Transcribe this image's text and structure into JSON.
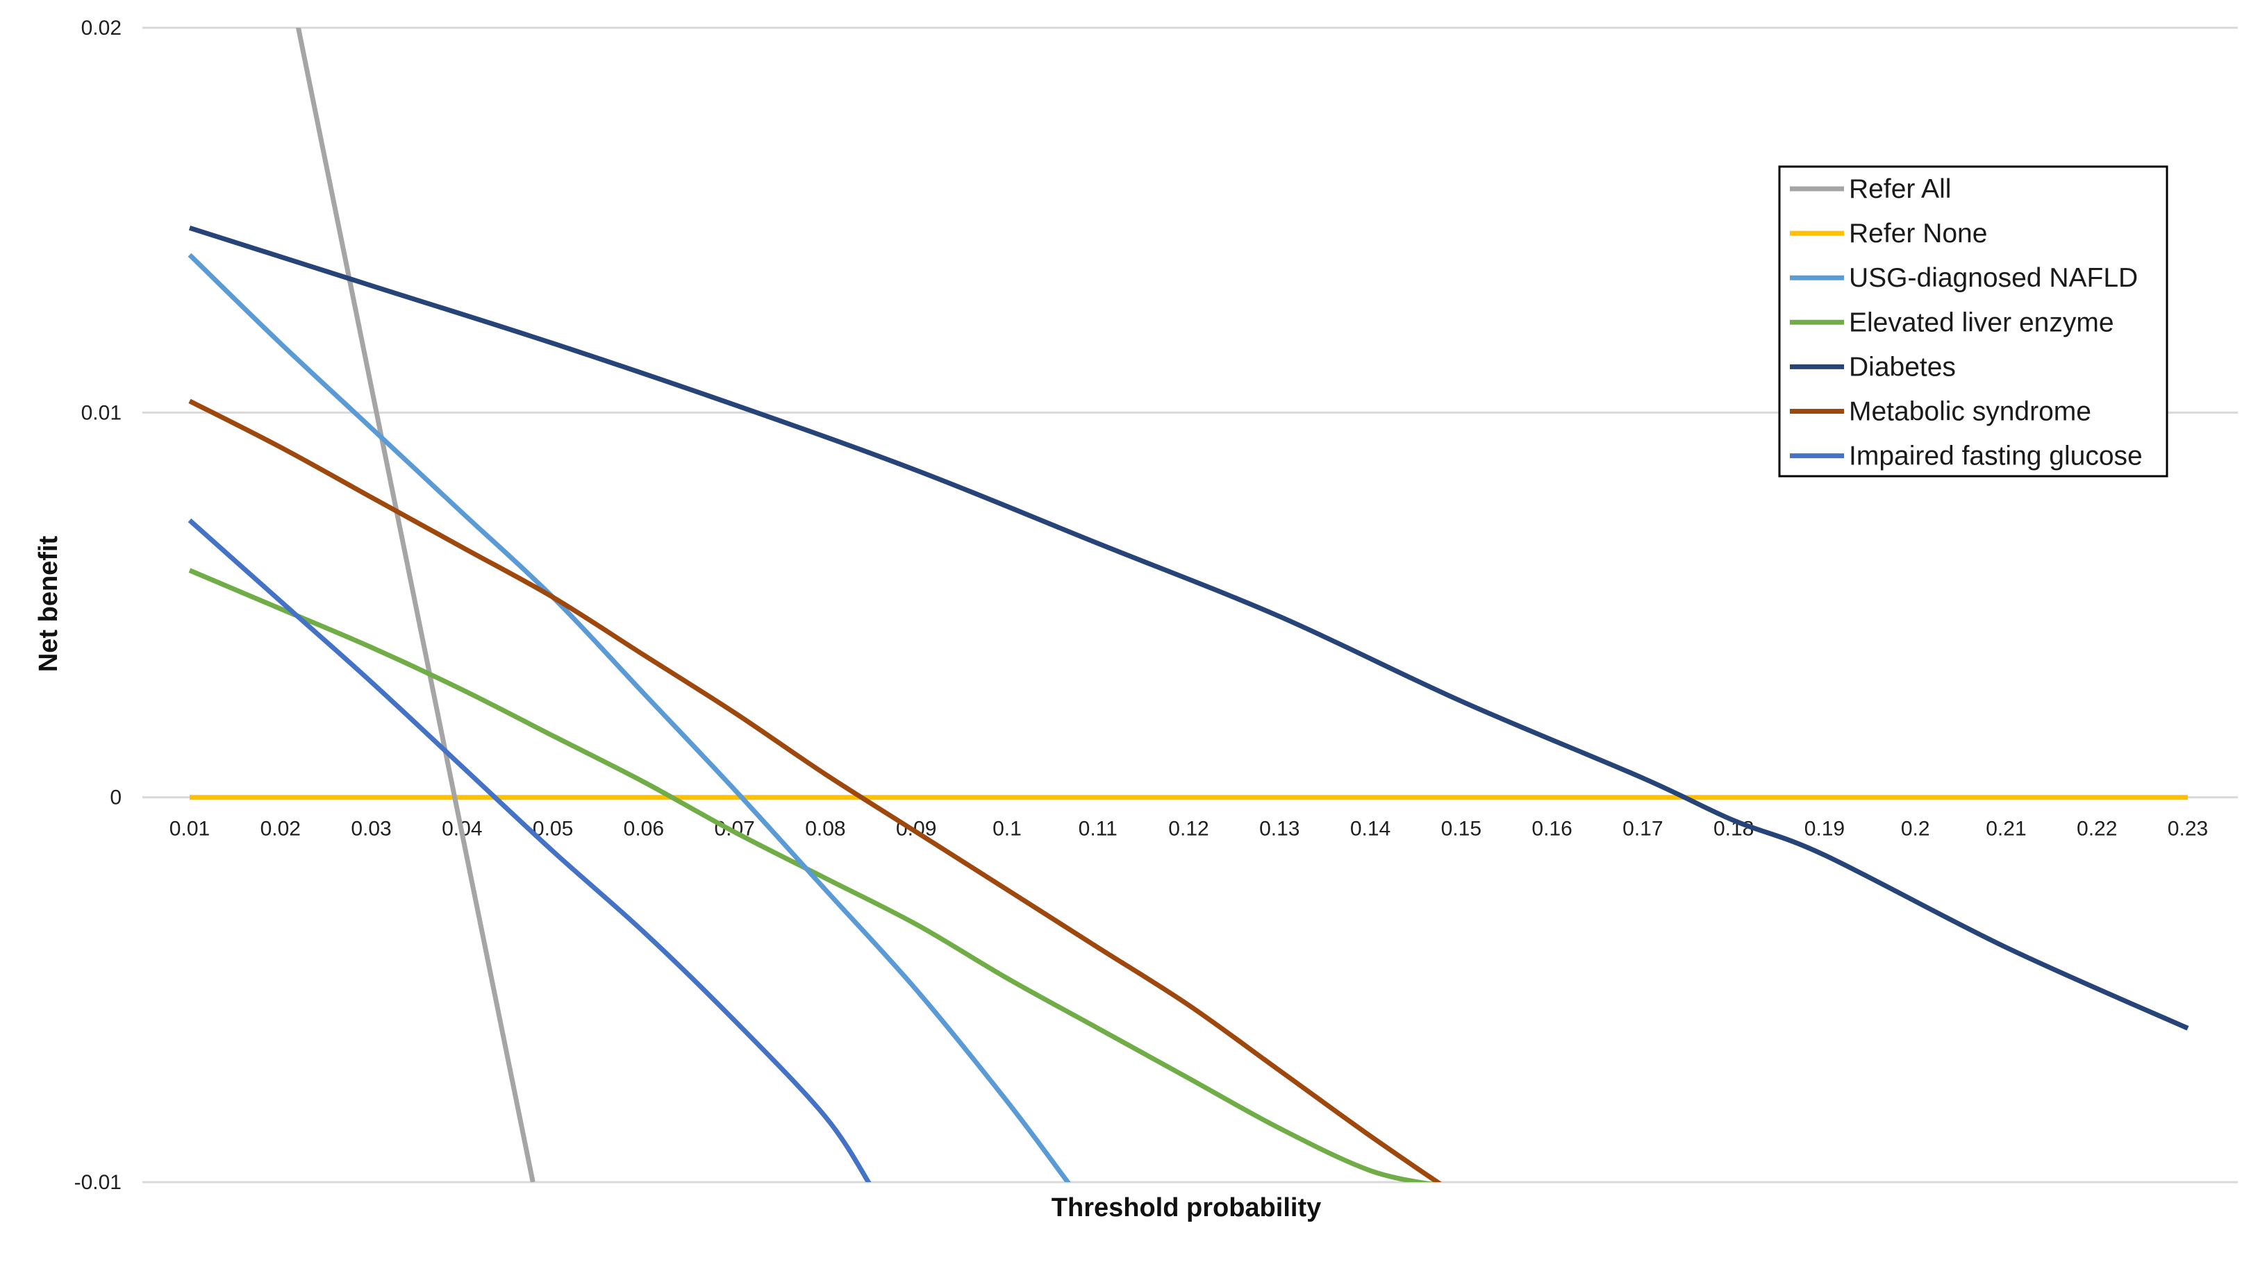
{
  "chart_data": {
    "type": "line",
    "xlabel": "Threshold probability",
    "ylabel": "Net benefit",
    "xlim": [
      0.01,
      0.23
    ],
    "ylim": [
      -0.01,
      0.02
    ],
    "x_ticks": [
      "0.01",
      "0.02",
      "0.03",
      "0.04",
      "0.05",
      "0.06",
      "0.07",
      "0.08",
      "0.09",
      "0.1",
      "0.11",
      "0.12",
      "0.13",
      "0.14",
      "0.15",
      "0.16",
      "0.17",
      "0.18",
      "0.19",
      "0.2",
      "0.21",
      "0.22",
      "0.23"
    ],
    "y_ticks": [
      {
        "value": 0.02,
        "label": "0.02"
      },
      {
        "value": 0.01,
        "label": "0.01"
      },
      {
        "value": 0,
        "label": "0"
      },
      {
        "value": -0.01,
        "label": "-0.01"
      }
    ],
    "grid": "horizontal",
    "legend_position": "top-right",
    "series": [
      {
        "name": "Refer All",
        "color": "#a5a5a5",
        "x": [
          0.01,
          0.0478
        ],
        "y": [
          0.0339,
          -0.01
        ]
      },
      {
        "name": "Refer None",
        "color": "#ffc000",
        "x": [
          0.01,
          0.23
        ],
        "y": [
          0,
          0
        ]
      },
      {
        "name": "USG-diagnosed NAFLD",
        "color": "#5b9bd5",
        "x": [
          0.01,
          0.02,
          0.03,
          0.04,
          0.05,
          0.06,
          0.07,
          0.08,
          0.09,
          0.1,
          0.107
        ],
        "y": [
          0.0141,
          0.0118,
          0.0096,
          0.0074,
          0.0052,
          0.0027,
          0.0002,
          -0.0024,
          -0.005,
          -0.0079,
          -0.0101
        ]
      },
      {
        "name": "Elevated liver enzyme",
        "color": "#70ad47",
        "x": [
          0.01,
          0.02,
          0.03,
          0.04,
          0.05,
          0.06,
          0.07,
          0.08,
          0.09,
          0.1,
          0.11,
          0.12,
          0.13,
          0.14,
          0.1478
        ],
        "y": [
          0.0059,
          0.0049,
          0.0039,
          0.0028,
          0.0016,
          0.0004,
          -0.0009,
          -0.0021,
          -0.0033,
          -0.0047,
          -0.006,
          -0.0073,
          -0.0086,
          -0.0097,
          -0.0101
        ]
      },
      {
        "name": "Diabetes",
        "color": "#264478",
        "x": [
          0.01,
          0.03,
          0.05,
          0.07,
          0.09,
          0.11,
          0.13,
          0.15,
          0.17,
          0.18,
          0.19,
          0.21,
          0.23
        ],
        "y": [
          0.0148,
          0.0133,
          0.0118,
          0.0102,
          0.0085,
          0.0066,
          0.0047,
          0.0025,
          0.0005,
          -0.0006,
          -0.0015,
          -0.0039,
          -0.006
        ]
      },
      {
        "name": "Metabolic syndrome",
        "color": "#9e480e",
        "x": [
          0.01,
          0.02,
          0.03,
          0.04,
          0.05,
          0.06,
          0.07,
          0.08,
          0.09,
          0.1,
          0.11,
          0.12,
          0.13,
          0.14,
          0.148
        ],
        "y": [
          0.0103,
          0.0091,
          0.0078,
          0.0065,
          0.0052,
          0.0037,
          0.0022,
          0.0006,
          -0.0009,
          -0.0024,
          -0.0039,
          -0.0054,
          -0.0071,
          -0.0088,
          -0.0101
        ]
      },
      {
        "name": "Impaired fasting glucose",
        "color": "#4472c4",
        "x": [
          0.01,
          0.02,
          0.03,
          0.04,
          0.05,
          0.06,
          0.07,
          0.08,
          0.085
        ],
        "y": [
          0.0072,
          0.0051,
          0.003,
          0.0008,
          -0.0014,
          -0.0035,
          -0.0058,
          -0.0083,
          -0.0101
        ]
      }
    ]
  }
}
